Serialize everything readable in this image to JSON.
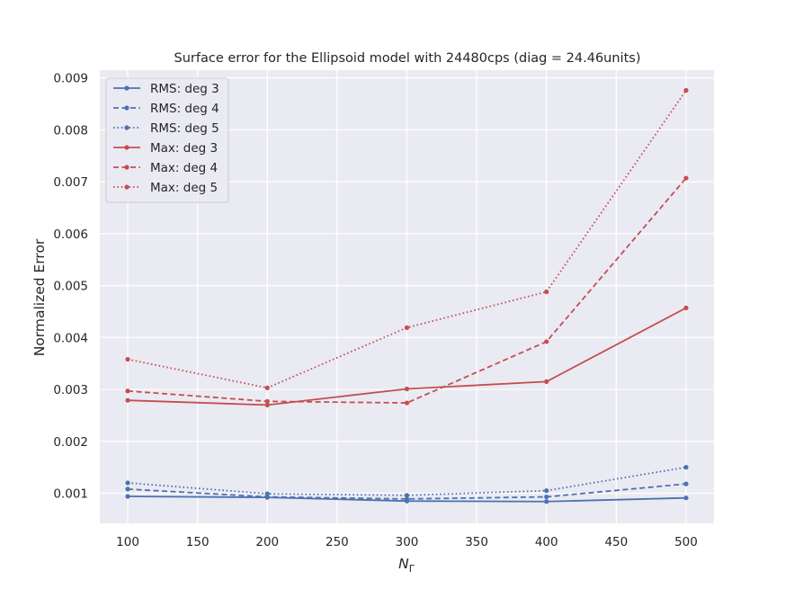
{
  "chart_data": {
    "type": "line",
    "title": "Surface error for the Ellipsoid model with 24480cps (diag = 24.46units)",
    "xlabel": "N",
    "xlabel_subscript": "Γ",
    "ylabel": "Normalized Error",
    "xlim": [
      80,
      520
    ],
    "ylim": [
      0.00042,
      0.00915
    ],
    "x_ticks": [
      100,
      150,
      200,
      250,
      300,
      350,
      400,
      450,
      500
    ],
    "x_tick_labels": [
      "100",
      "150",
      "200",
      "250",
      "300",
      "350",
      "400",
      "450",
      "500"
    ],
    "y_ticks": [
      0.001,
      0.002,
      0.003,
      0.004,
      0.005,
      0.006,
      0.007,
      0.008,
      0.009
    ],
    "y_tick_labels": [
      "0.001",
      "0.002",
      "0.003",
      "0.004",
      "0.005",
      "0.006",
      "0.007",
      "0.008",
      "0.009"
    ],
    "grid": true,
    "legend_position": "upper-left",
    "x": [
      100,
      200,
      300,
      400,
      500
    ],
    "series": [
      {
        "name": "RMS: deg 3",
        "color": "#4c72b0",
        "dash": "solid",
        "values": [
          0.00094,
          0.00092,
          0.00085,
          0.00084,
          0.00091
        ]
      },
      {
        "name": "RMS: deg 4",
        "color": "#4c72b0",
        "dash": "dashed",
        "values": [
          0.00108,
          0.00093,
          0.00089,
          0.00093,
          0.00118
        ]
      },
      {
        "name": "RMS: deg 5",
        "color": "#4c72b0",
        "dash": "dotted",
        "values": [
          0.0012,
          0.00099,
          0.00096,
          0.00105,
          0.0015
        ]
      },
      {
        "name": "Max: deg 3",
        "color": "#c44e52",
        "dash": "solid",
        "values": [
          0.00279,
          0.0027,
          0.00301,
          0.00315,
          0.00457
        ]
      },
      {
        "name": "Max: deg 4",
        "color": "#c44e52",
        "dash": "dashed",
        "values": [
          0.00297,
          0.00277,
          0.00274,
          0.00392,
          0.00707
        ]
      },
      {
        "name": "Max: deg 5",
        "color": "#c44e52",
        "dash": "dotted",
        "values": [
          0.00358,
          0.00303,
          0.00419,
          0.00488,
          0.00876
        ]
      }
    ]
  }
}
